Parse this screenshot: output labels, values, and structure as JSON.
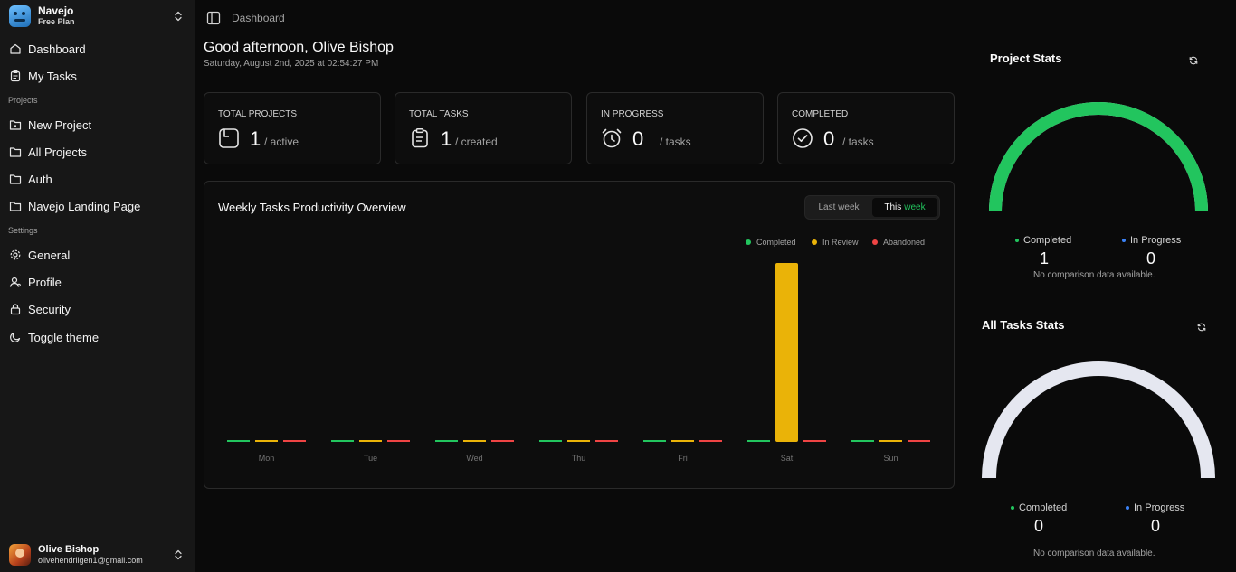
{
  "brand": {
    "name": "Navejo",
    "plan": "Free Plan"
  },
  "nav": {
    "top": [
      {
        "label": "Dashboard",
        "icon": "home-icon"
      },
      {
        "label": "My Tasks",
        "icon": "clipboard-icon"
      }
    ],
    "projects_heading": "Projects",
    "projects": [
      {
        "label": "New Project",
        "icon": "folder-plus-icon"
      },
      {
        "label": "All Projects",
        "icon": "folder-icon"
      },
      {
        "label": "Auth",
        "icon": "folder-icon"
      },
      {
        "label": "Navejo Landing Page",
        "icon": "folder-icon"
      }
    ],
    "settings_heading": "Settings",
    "settings": [
      {
        "label": "General",
        "icon": "gear-icon"
      },
      {
        "label": "Profile",
        "icon": "user-icon"
      },
      {
        "label": "Security",
        "icon": "lock-icon"
      },
      {
        "label": "Toggle theme",
        "icon": "moon-icon"
      }
    ]
  },
  "user": {
    "name": "Olive Bishop",
    "email": "olivehendrilgen1@gmail.com"
  },
  "header": {
    "breadcrumb": "Dashboard"
  },
  "greeting": {
    "title": "Good afternoon, Olive Bishop",
    "date": "Saturday, August 2nd, 2025 at 02:54:27 PM"
  },
  "cards": [
    {
      "label": "TOTAL PROJECTS",
      "value": "1",
      "suffix": "/ active"
    },
    {
      "label": "TOTAL TASKS",
      "value": "1",
      "suffix": "/ created"
    },
    {
      "label": "IN PROGRESS",
      "value": "0",
      "suffix": "/ tasks"
    },
    {
      "label": "COMPLETED",
      "value": "0",
      "suffix": "/ tasks"
    }
  ],
  "weekly": {
    "title": "Weekly Tasks Productivity Overview",
    "toggle": {
      "last": "Last week",
      "this_prefix": "This",
      "this_accent": "week"
    }
  },
  "chart_data": {
    "type": "bar",
    "categories": [
      "Mon",
      "Tue",
      "Wed",
      "Thu",
      "Fri",
      "Sat",
      "Sun"
    ],
    "series": [
      {
        "name": "Completed",
        "color": "#22c55e",
        "values": [
          0,
          0,
          0,
          0,
          0,
          0,
          0
        ]
      },
      {
        "name": "In Review",
        "color": "#eab308",
        "values": [
          0,
          0,
          0,
          0,
          0,
          1,
          0
        ]
      },
      {
        "name": "Abandoned",
        "color": "#ef4444",
        "values": [
          0,
          0,
          0,
          0,
          0,
          0,
          0
        ]
      }
    ],
    "ylim": [
      0,
      1
    ],
    "legend": "top-right",
    "grid": false
  },
  "project_stats": {
    "title": "Project Stats",
    "completed_label": "Completed",
    "completed_value": "1",
    "progress_label": "In Progress",
    "progress_value": "0",
    "completed_fraction": 1,
    "gauge_color": "#22c55e",
    "note": "No comparison data available."
  },
  "task_stats": {
    "title": "All Tasks Stats",
    "completed_label": "Completed",
    "completed_value": "0",
    "progress_label": "In Progress",
    "progress_value": "0",
    "completed_fraction": 0,
    "gauge_color": "#e5e7f0",
    "note": "No comparison data available."
  },
  "colors": {
    "completed": "#22c55e",
    "progress": "#3b82f6"
  }
}
